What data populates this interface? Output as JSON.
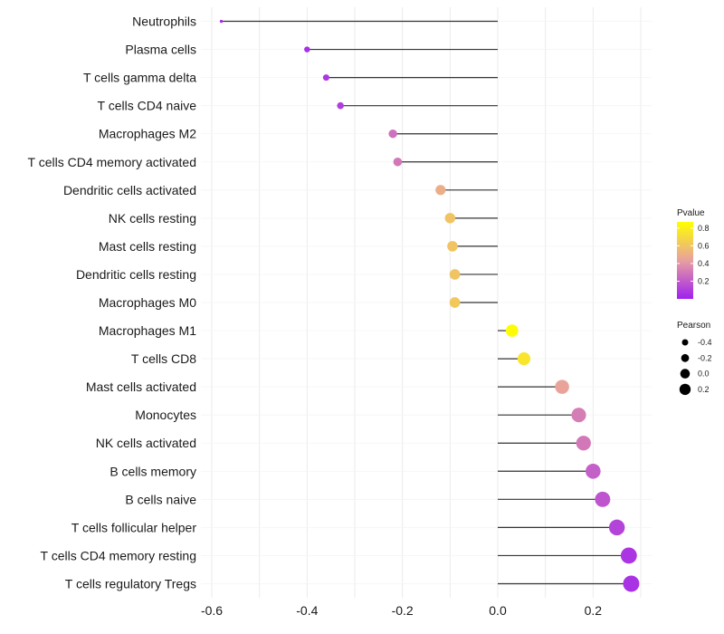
{
  "chart_data": {
    "type": "lollipop",
    "categories": [
      "Neutrophils",
      "Plasma cells",
      "T cells gamma delta",
      "T cells CD4 naive",
      "Macrophages M2",
      "T cells CD4 memory activated",
      "Dendritic cells activated",
      "NK cells resting",
      "Mast cells resting",
      "Dendritic cells resting",
      "Macrophages M0",
      "Macrophages M1",
      "T cells CD8",
      "Mast cells activated",
      "Monocytes",
      "NK cells activated",
      "B cells memory",
      "B cells naive",
      "T cells follicular helper",
      "T cells CD4 memory resting",
      "T cells regulatory  Tregs"
    ],
    "values": [
      -0.58,
      -0.4,
      -0.36,
      -0.33,
      -0.22,
      -0.21,
      -0.12,
      -0.1,
      -0.095,
      -0.09,
      -0.09,
      0.03,
      0.055,
      0.135,
      0.17,
      0.18,
      0.2,
      0.22,
      0.25,
      0.275,
      0.28
    ],
    "pvalues": [
      0.02,
      0.05,
      0.08,
      0.1,
      0.28,
      0.3,
      0.5,
      0.6,
      0.6,
      0.6,
      0.62,
      0.85,
      0.75,
      0.45,
      0.32,
      0.3,
      0.22,
      0.18,
      0.12,
      0.07,
      0.06
    ],
    "xlim": [
      -0.6,
      0.3
    ],
    "x_ticks": [
      -0.6,
      -0.4,
      -0.2,
      0.0,
      0.2
    ],
    "x_tick_labels": [
      "-0.6",
      "-0.4",
      "-0.2",
      "0.0",
      "0.2"
    ],
    "xlabel": "",
    "ylabel": "",
    "title": "",
    "grid": true,
    "legend_color": {
      "title": "Pvalue",
      "ticks": [
        0.2,
        0.4,
        0.6,
        0.8
      ],
      "tick_labels": [
        "0.2",
        "0.4",
        "0.6",
        "0.8"
      ],
      "range": [
        0.0,
        0.87
      ],
      "low_color": "#a020f0",
      "mid_color": "#e8a0a0",
      "high_color": "#ffff00"
    },
    "legend_size": {
      "title": "Pearson",
      "values": [
        -0.4,
        -0.2,
        0.0,
        0.2
      ],
      "labels": [
        "-0.4",
        "-0.2",
        "0.0",
        "0.2"
      ]
    },
    "legend_position": "right",
    "colors": {
      "stem": "#333333",
      "grid": "#ebebeb",
      "text": "#1a1a1a"
    }
  }
}
